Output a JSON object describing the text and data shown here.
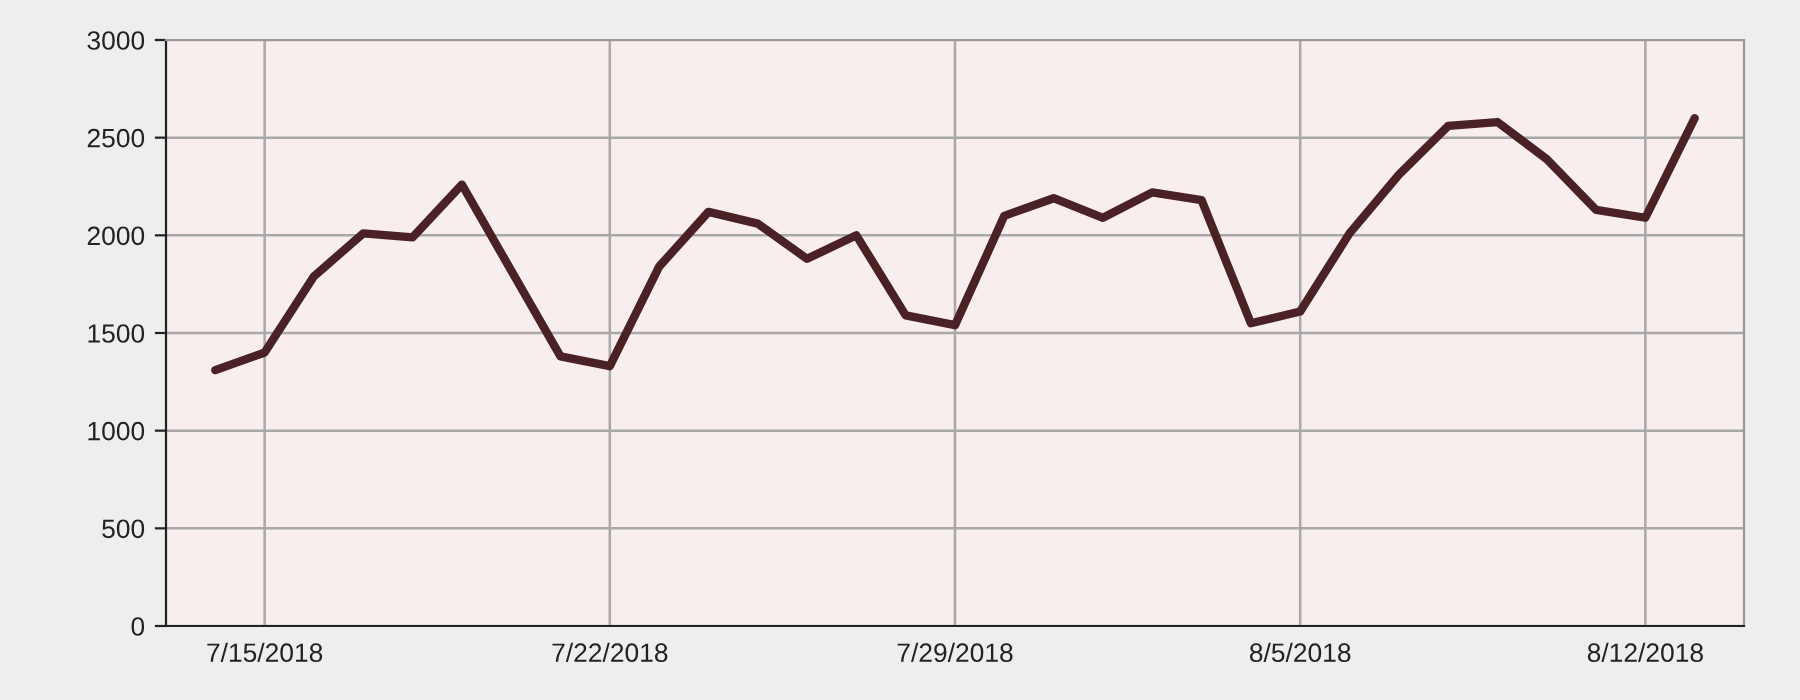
{
  "chart_data": {
    "type": "line",
    "x": [
      "2018-07-14",
      "2018-07-15",
      "2018-07-16",
      "2018-07-17",
      "2018-07-18",
      "2018-07-19",
      "2018-07-20",
      "2018-07-21",
      "2018-07-22",
      "2018-07-23",
      "2018-07-24",
      "2018-07-25",
      "2018-07-26",
      "2018-07-27",
      "2018-07-28",
      "2018-07-29",
      "2018-07-30",
      "2018-07-31",
      "2018-08-01",
      "2018-08-02",
      "2018-08-03",
      "2018-08-04",
      "2018-08-05",
      "2018-08-06",
      "2018-08-07",
      "2018-08-08",
      "2018-08-09",
      "2018-08-10",
      "2018-08-11",
      "2018-08-12",
      "2018-08-13"
    ],
    "series": [
      {
        "color": "#4a2125",
        "values": [
          1310,
          1400,
          1790,
          2010,
          1990,
          2260,
          1820,
          1380,
          1330,
          1840,
          2120,
          2060,
          1880,
          2000,
          1590,
          1540,
          2100,
          2190,
          2090,
          2220,
          2180,
          1550,
          1610,
          2010,
          2310,
          2560,
          2580,
          2390,
          2130,
          2090,
          2600
        ]
      }
    ],
    "xlim": [
      "2018-07-13",
      "2018-08-14"
    ],
    "xticks": [
      {
        "value": "2018-07-15",
        "label": "7/15/2018"
      },
      {
        "value": "2018-07-22",
        "label": "7/22/2018"
      },
      {
        "value": "2018-07-29",
        "label": "7/29/2018"
      },
      {
        "value": "2018-08-05",
        "label": "8/5/2018"
      },
      {
        "value": "2018-08-12",
        "label": "8/12/2018"
      }
    ],
    "ylim": [
      0,
      3000
    ],
    "yticks": [
      0,
      500,
      1000,
      1500,
      2000,
      2500,
      3000
    ],
    "grid": true,
    "line_style": "solid",
    "marker": "none"
  }
}
